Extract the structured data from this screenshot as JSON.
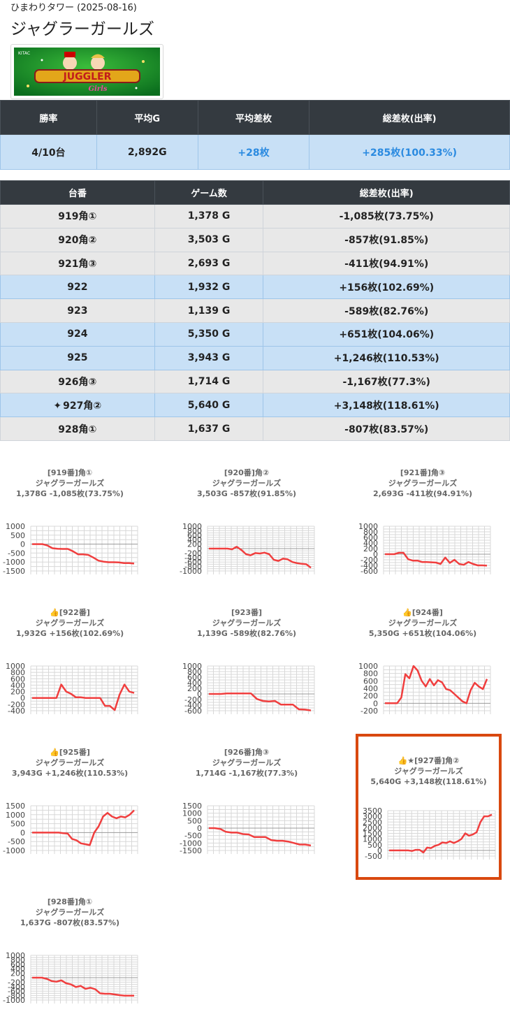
{
  "header": {
    "subtitle": "ひまわりタワー (2025-08-16)",
    "title": "ジャグラーガールズ"
  },
  "banner": {
    "logo_text": "JUGGLER",
    "logo_subtext": "Girls",
    "maker_text": "KITAC"
  },
  "summary": {
    "headers": [
      "勝率",
      "平均G",
      "平均差枚",
      "総差枚(出率)"
    ],
    "values": [
      "4/10台",
      "2,892G",
      "+28枚",
      "+285枚(100.33%)"
    ]
  },
  "machines": {
    "headers": [
      "台番",
      "ゲーム数",
      "総差枚(出率)"
    ],
    "rows": [
      {
        "id": "919角①",
        "games": "1,378 G",
        "diff": "-1,085枚(73.75%)",
        "plus": false
      },
      {
        "id": "920角②",
        "games": "3,503 G",
        "diff": "-857枚(91.85%)",
        "plus": false
      },
      {
        "id": "921角③",
        "games": "2,693 G",
        "diff": "-411枚(94.91%)",
        "plus": false
      },
      {
        "id": "922",
        "games": "1,932 G",
        "diff": "+156枚(102.69%)",
        "plus": true
      },
      {
        "id": "923",
        "games": "1,139 G",
        "diff": "-589枚(82.76%)",
        "plus": false
      },
      {
        "id": "924",
        "games": "5,350 G",
        "diff": "+651枚(104.06%)",
        "plus": true
      },
      {
        "id": "925",
        "games": "3,943 G",
        "diff": "+1,246枚(110.53%)",
        "plus": true
      },
      {
        "id": "926角③",
        "games": "1,714 G",
        "diff": "-1,167枚(77.3%)",
        "plus": false
      },
      {
        "id": "927角②",
        "games": "5,640 G",
        "diff": "+3,148枚(118.61%)",
        "plus": true,
        "star": true
      },
      {
        "id": "928角①",
        "games": "1,637 G",
        "diff": "-807枚(83.57%)",
        "plus": false
      }
    ]
  },
  "colors": {
    "line": "#f03e3e",
    "header_bg": "#343a40",
    "plus_row": "#c8e0f6",
    "minus_row": "#e8e8e8",
    "highlight_border": "#d9480f"
  },
  "chart_data": [
    {
      "type": "line",
      "title": [
        "[919番]角①",
        "ジャグラーガールズ",
        "1,378G -1,085枚(73.75%)"
      ],
      "yticks": [
        1000,
        500,
        0,
        -500,
        -1000,
        -1500
      ],
      "ylim": [
        -1500,
        1000
      ],
      "values": [
        0,
        0,
        0,
        -80,
        -230,
        -260,
        -270,
        -270,
        -400,
        -570,
        -570,
        -600,
        -750,
        -920,
        -980,
        -1010,
        -1010,
        -1020,
        -1060,
        -1060,
        -1085
      ]
    },
    {
      "type": "line",
      "title": [
        "[920番]角②",
        "ジャグラーガールズ",
        "3,503G -857枚(91.85%)"
      ],
      "yticks": [
        1000,
        800,
        600,
        400,
        200,
        0,
        -200,
        -400,
        -600,
        -800,
        -1000
      ],
      "ylim": [
        -1000,
        1000
      ],
      "values": [
        0,
        0,
        0,
        0,
        0,
        -30,
        80,
        -60,
        -250,
        -300,
        -200,
        -220,
        -180,
        -250,
        -500,
        -550,
        -450,
        -480,
        -600,
        -650,
        -680,
        -700,
        -857
      ]
    },
    {
      "type": "line",
      "title": [
        "[921番]角③",
        "ジャグラーガールズ",
        "2,693G -411枚(94.91%)"
      ],
      "yticks": [
        1000,
        800,
        600,
        400,
        200,
        0,
        -200,
        -400,
        -600
      ],
      "ylim": [
        -600,
        1000
      ],
      "values": [
        0,
        0,
        0,
        50,
        50,
        -180,
        -230,
        -230,
        -280,
        -280,
        -290,
        -300,
        -350,
        -120,
        -310,
        -200,
        -350,
        -380,
        -280,
        -350,
        -400,
        -400,
        -411
      ]
    },
    {
      "type": "line",
      "title": [
        "👍[922番]",
        "ジャグラーガールズ",
        "1,932G +156枚(102.69%)"
      ],
      "yticks": [
        1000,
        800,
        600,
        400,
        200,
        0,
        -200,
        -400
      ],
      "ylim": [
        -400,
        1000
      ],
      "values": [
        0,
        0,
        0,
        0,
        0,
        0,
        420,
        200,
        130,
        20,
        20,
        0,
        0,
        0,
        0,
        -250,
        -250,
        -380,
        100,
        420,
        200,
        156
      ]
    },
    {
      "type": "line",
      "title": [
        "[923番]",
        "ジャグラーガールズ",
        "1,139G -589枚(82.76%)"
      ],
      "yticks": [
        1000,
        800,
        600,
        400,
        200,
        0,
        -200,
        -400,
        -600
      ],
      "ylim": [
        -600,
        1000
      ],
      "values": [
        0,
        0,
        0,
        20,
        20,
        20,
        20,
        20,
        -180,
        -250,
        -270,
        -250,
        -380,
        -380,
        -380,
        -550,
        -560,
        -589
      ]
    },
    {
      "type": "line",
      "title": [
        "👍[924番]",
        "ジャグラーガールズ",
        "5,350G +651枚(104.06%)"
      ],
      "yticks": [
        1000,
        800,
        600,
        400,
        200,
        0,
        -200
      ],
      "ylim": [
        -200,
        1000
      ],
      "values": [
        0,
        0,
        0,
        0,
        150,
        780,
        670,
        1000,
        880,
        600,
        450,
        650,
        480,
        620,
        560,
        380,
        350,
        250,
        150,
        50,
        0,
        350,
        550,
        450,
        380,
        651
      ]
    },
    {
      "type": "line",
      "title": [
        "👍[925番]",
        "ジャグラーガールズ",
        "3,943G +1,246枚(110.53%)"
      ],
      "yticks": [
        1500,
        1000,
        500,
        0,
        -500,
        -1000
      ],
      "ylim": [
        -1000,
        1500
      ],
      "values": [
        0,
        0,
        0,
        0,
        0,
        0,
        0,
        -30,
        -50,
        -350,
        -430,
        -600,
        -650,
        -700,
        0,
        350,
        900,
        1100,
        900,
        800,
        900,
        850,
        1000,
        1246
      ]
    },
    {
      "type": "line",
      "title": [
        "[926番]角③",
        "ジャグラーガールズ",
        "1,714G -1,167枚(77.3%)"
      ],
      "yticks": [
        1500,
        1000,
        500,
        0,
        -500,
        -1000,
        -1500
      ],
      "ylim": [
        -1500,
        1500
      ],
      "values": [
        0,
        0,
        -50,
        -250,
        -300,
        -300,
        -400,
        -420,
        -600,
        -600,
        -600,
        -800,
        -850,
        -850,
        -900,
        -1000,
        -1100,
        -1100,
        -1167
      ]
    },
    {
      "type": "line",
      "title": [
        "👍★[927番]角②",
        "ジャグラーガールズ",
        "5,640G +3,148枚(118.61%)"
      ],
      "yticks": [
        3500,
        3000,
        2500,
        2000,
        1500,
        1000,
        500,
        0,
        -500
      ],
      "ylim": [
        -500,
        3500
      ],
      "values": [
        0,
        0,
        0,
        0,
        0,
        0,
        -50,
        50,
        50,
        -180,
        250,
        200,
        400,
        500,
        700,
        650,
        800,
        650,
        800,
        1000,
        1500,
        1300,
        1400,
        1600,
        2500,
        3000,
        3000,
        3148
      ]
    },
    {
      "type": "line",
      "title": [
        "[928番]角①",
        "ジャグラーガールズ",
        "1,637G -807枚(83.57%)"
      ],
      "yticks": [
        1000,
        800,
        600,
        400,
        200,
        0,
        -200,
        -400,
        -600,
        -800,
        -1000
      ],
      "ylim": [
        -1000,
        1000
      ],
      "values": [
        0,
        0,
        0,
        -50,
        -150,
        -180,
        -120,
        -250,
        -300,
        -420,
        -370,
        -500,
        -450,
        -520,
        -700,
        -720,
        -720,
        -750,
        -780,
        -807,
        -807,
        -807
      ]
    }
  ]
}
